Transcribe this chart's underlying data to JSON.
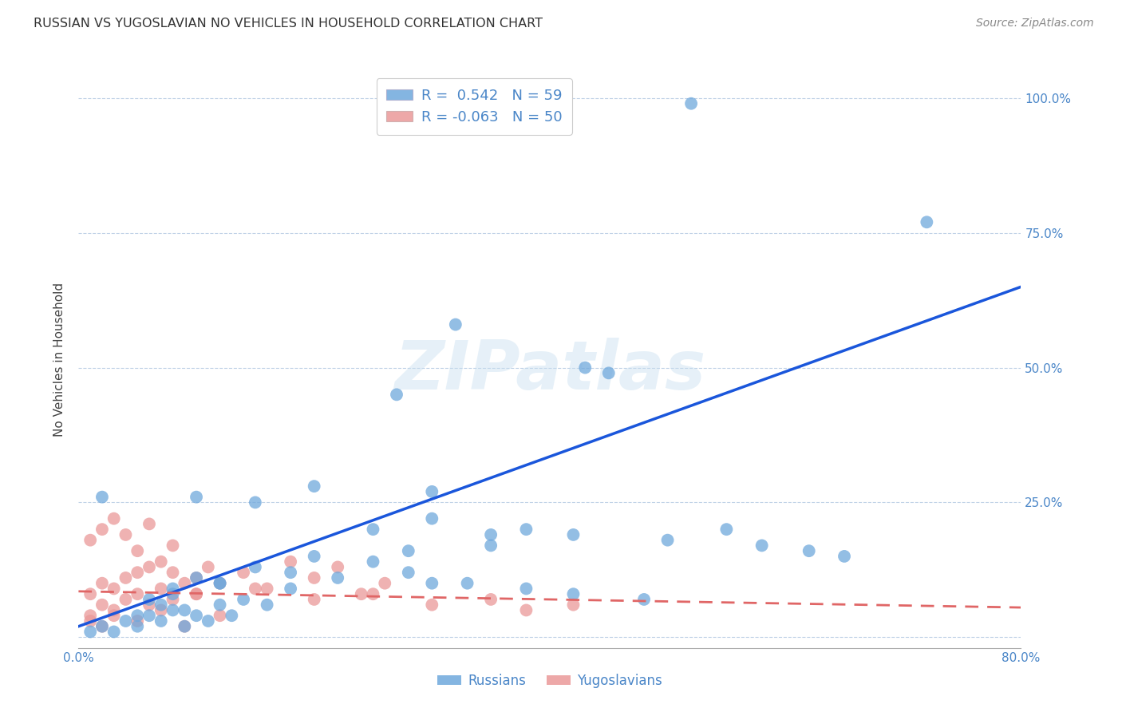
{
  "title": "RUSSIAN VS YUGOSLAVIAN NO VEHICLES IN HOUSEHOLD CORRELATION CHART",
  "source": "Source: ZipAtlas.com",
  "ylabel": "No Vehicles in Household",
  "xlim": [
    0.0,
    0.8
  ],
  "ylim": [
    -0.02,
    1.05
  ],
  "russian_R": 0.542,
  "russian_N": 59,
  "yugoslav_R": -0.063,
  "yugoslav_N": 50,
  "russian_color": "#6fa8dc",
  "yugoslav_color": "#ea9999",
  "russian_line_color": "#1a56db",
  "yugoslav_line_color": "#e06666",
  "background_color": "#ffffff",
  "watermark": "ZIPatlas",
  "russian_scatter_x": [
    0.52,
    0.72,
    0.32,
    0.27,
    0.43,
    0.45,
    0.01,
    0.02,
    0.03,
    0.04,
    0.05,
    0.06,
    0.07,
    0.08,
    0.09,
    0.1,
    0.11,
    0.12,
    0.13,
    0.06,
    0.08,
    0.1,
    0.12,
    0.15,
    0.18,
    0.2,
    0.25,
    0.28,
    0.3,
    0.35,
    0.15,
    0.2,
    0.25,
    0.3,
    0.35,
    0.02,
    0.1,
    0.3,
    0.38,
    0.42,
    0.5,
    0.55,
    0.58,
    0.62,
    0.65,
    0.08,
    0.12,
    0.18,
    0.22,
    0.28,
    0.33,
    0.38,
    0.42,
    0.48,
    0.05,
    0.07,
    0.09,
    0.14,
    0.16
  ],
  "russian_scatter_y": [
    0.99,
    0.77,
    0.58,
    0.45,
    0.5,
    0.49,
    0.01,
    0.02,
    0.01,
    0.03,
    0.02,
    0.04,
    0.03,
    0.05,
    0.02,
    0.04,
    0.03,
    0.06,
    0.04,
    0.07,
    0.09,
    0.11,
    0.1,
    0.13,
    0.12,
    0.15,
    0.14,
    0.16,
    0.1,
    0.17,
    0.25,
    0.28,
    0.2,
    0.22,
    0.19,
    0.26,
    0.26,
    0.27,
    0.2,
    0.19,
    0.18,
    0.2,
    0.17,
    0.16,
    0.15,
    0.08,
    0.1,
    0.09,
    0.11,
    0.12,
    0.1,
    0.09,
    0.08,
    0.07,
    0.04,
    0.06,
    0.05,
    0.07,
    0.06
  ],
  "yugoslav_scatter_x": [
    0.01,
    0.01,
    0.02,
    0.02,
    0.03,
    0.03,
    0.04,
    0.04,
    0.05,
    0.05,
    0.06,
    0.06,
    0.07,
    0.07,
    0.08,
    0.08,
    0.09,
    0.1,
    0.1,
    0.11,
    0.01,
    0.02,
    0.03,
    0.04,
    0.05,
    0.06,
    0.08,
    0.12,
    0.14,
    0.16,
    0.18,
    0.2,
    0.22,
    0.24,
    0.26,
    0.1,
    0.15,
    0.2,
    0.25,
    0.3,
    0.35,
    0.38,
    0.42,
    0.01,
    0.02,
    0.03,
    0.05,
    0.07,
    0.09,
    0.12
  ],
  "yugoslav_scatter_y": [
    0.04,
    0.08,
    0.06,
    0.1,
    0.05,
    0.09,
    0.07,
    0.11,
    0.08,
    0.12,
    0.06,
    0.13,
    0.09,
    0.14,
    0.07,
    0.12,
    0.1,
    0.11,
    0.08,
    0.13,
    0.18,
    0.2,
    0.22,
    0.19,
    0.16,
    0.21,
    0.17,
    0.1,
    0.12,
    0.09,
    0.14,
    0.11,
    0.13,
    0.08,
    0.1,
    0.08,
    0.09,
    0.07,
    0.08,
    0.06,
    0.07,
    0.05,
    0.06,
    0.03,
    0.02,
    0.04,
    0.03,
    0.05,
    0.02,
    0.04
  ],
  "russian_trend_x": [
    0.0,
    0.8
  ],
  "russian_trend_y": [
    0.02,
    0.65
  ],
  "yugoslav_trend_x": [
    0.0,
    0.8
  ],
  "yugoslav_trend_y": [
    0.085,
    0.055
  ]
}
